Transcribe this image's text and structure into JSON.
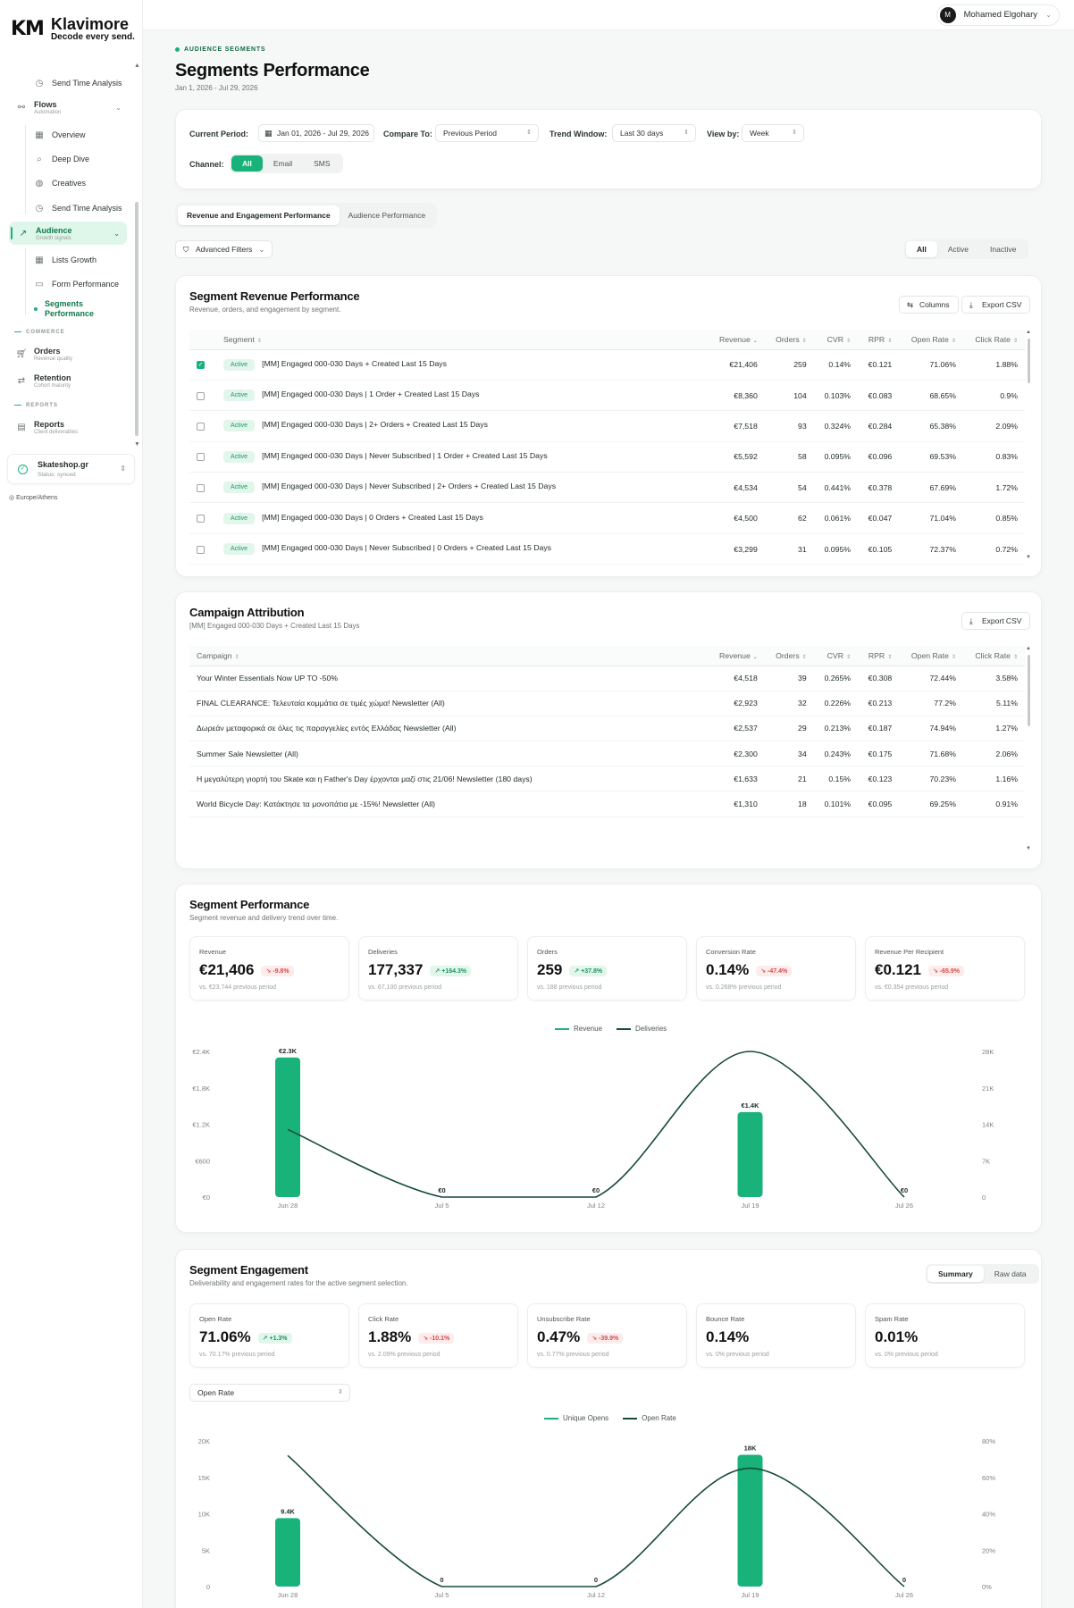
{
  "brand": {
    "mark": "KM",
    "name": "Klavimore",
    "tagline": "Decode every send."
  },
  "sidebar": {
    "items": [
      {
        "label": "Send Time Analysis"
      },
      {
        "label": "Flows",
        "sub": "Automation"
      },
      {
        "label": "Overview"
      },
      {
        "label": "Deep Dive"
      },
      {
        "label": "Creatives"
      },
      {
        "label": "Send Time Analysis"
      },
      {
        "label": "Audience",
        "sub": "Growth signals"
      },
      {
        "label": "Lists Growth"
      },
      {
        "label": "Form Performance"
      },
      {
        "label": "Segments Performance"
      },
      {
        "label": "Orders",
        "sub": "Revenue quality"
      },
      {
        "label": "Retention",
        "sub": "Cohort maturity"
      },
      {
        "label": "Reports",
        "sub": "Client deliverables"
      }
    ],
    "sections": {
      "commerce": "COMMERCE",
      "reports": "REPORTS"
    },
    "store": {
      "name": "Skateshop.gr",
      "status": "Status: synced"
    },
    "timezone": "Europe/Athens"
  },
  "user": {
    "name": "Mohamed Elgohary",
    "initial": "M"
  },
  "page": {
    "eyebrow": "AUDIENCE SEGMENTS",
    "title": "Segments Performance",
    "date_range": "Jan 1, 2026 - Jul 29, 2026"
  },
  "filters": {
    "current_period_label": "Current Period:",
    "current_period_value": "Jan 01, 2026 - Jul 29, 2026",
    "compare_label": "Compare To:",
    "compare_value": "Previous Period",
    "trend_label": "Trend Window:",
    "trend_value": "Last 30 days",
    "view_label": "View by:",
    "view_value": "Week",
    "channel_label": "Channel:",
    "channels": [
      "All",
      "Email",
      "SMS"
    ]
  },
  "tabs": [
    "Revenue and Engagement Performance",
    "Audience Performance"
  ],
  "advanced_filters": "Advanced Filters",
  "status_filter": [
    "All",
    "Active",
    "Inactive"
  ],
  "segment_table": {
    "title": "Segment Revenue Performance",
    "subtitle": "Revenue, orders, and engagement by segment.",
    "columns_btn": "Columns",
    "export_btn": "Export CSV",
    "headers": [
      "Segment",
      "Revenue",
      "Orders",
      "CVR",
      "RPR",
      "Open Rate",
      "Click Rate"
    ],
    "rows": [
      {
        "checked": true,
        "status": "Active",
        "name": "[MM] Engaged 000-030 Days + Created Last 15 Days",
        "revenue": "€21,406",
        "orders": "259",
        "cvr": "0.14%",
        "rpr": "€0.121",
        "open": "71.06%",
        "click": "1.88%"
      },
      {
        "checked": false,
        "status": "Active",
        "name": "[MM] Engaged 000-030 Days | 1 Order + Created Last 15 Days",
        "revenue": "€8,360",
        "orders": "104",
        "cvr": "0.103%",
        "rpr": "€0.083",
        "open": "68.65%",
        "click": "0.9%"
      },
      {
        "checked": false,
        "status": "Active",
        "name": "[MM] Engaged 000-030 Days | 2+ Orders + Created Last 15 Days",
        "revenue": "€7,518",
        "orders": "93",
        "cvr": "0.324%",
        "rpr": "€0.284",
        "open": "65.38%",
        "click": "2.09%"
      },
      {
        "checked": false,
        "status": "Active",
        "name": "[MM] Engaged 000-030 Days | Never Subscribed | 1 Order + Created Last 15 Days",
        "revenue": "€5,592",
        "orders": "58",
        "cvr": "0.095%",
        "rpr": "€0.096",
        "open": "69.53%",
        "click": "0.83%"
      },
      {
        "checked": false,
        "status": "Active",
        "name": "[MM] Engaged 000-030 Days | Never Subscribed | 2+ Orders + Created Last 15 Days",
        "revenue": "€4,534",
        "orders": "54",
        "cvr": "0.441%",
        "rpr": "€0.378",
        "open": "67.69%",
        "click": "1.72%"
      },
      {
        "checked": false,
        "status": "Active",
        "name": "[MM] Engaged 000-030 Days | 0 Orders + Created Last 15 Days",
        "revenue": "€4,500",
        "orders": "62",
        "cvr": "0.061%",
        "rpr": "€0.047",
        "open": "71.04%",
        "click": "0.85%"
      },
      {
        "checked": false,
        "status": "Active",
        "name": "[MM] Engaged 000-030 Days | Never Subscribed | 0 Orders + Created Last 15 Days",
        "revenue": "€3,299",
        "orders": "31",
        "cvr": "0.095%",
        "rpr": "€0.105",
        "open": "72.37%",
        "click": "0.72%"
      }
    ]
  },
  "campaign_table": {
    "title": "Campaign Attribution",
    "subtitle": "[MM] Engaged 000-030 Days + Created Last 15 Days",
    "export_btn": "Export CSV",
    "headers": [
      "Campaign",
      "Revenue",
      "Orders",
      "CVR",
      "RPR",
      "Open Rate",
      "Click Rate"
    ],
    "rows": [
      {
        "name": "Your Winter Essentials Now UP TO -50%",
        "revenue": "€4,518",
        "orders": "39",
        "cvr": "0.265%",
        "rpr": "€0.308",
        "open": "72.44%",
        "click": "3.58%"
      },
      {
        "name": "FINAL CLEARANCE: Τελευταία κομμάτια σε τιμές χώμα! Newsletter (All)",
        "revenue": "€2,923",
        "orders": "32",
        "cvr": "0.226%",
        "rpr": "€0.213",
        "open": "77.2%",
        "click": "5.11%"
      },
      {
        "name": "Δωρεάν μεταφορικά σε όλες τις παραγγελίες εντός Ελλάδας Newsletter (All)",
        "revenue": "€2,537",
        "orders": "29",
        "cvr": "0.213%",
        "rpr": "€0.187",
        "open": "74.94%",
        "click": "1.27%"
      },
      {
        "name": "Summer Sale Newsletter (All)",
        "revenue": "€2,300",
        "orders": "34",
        "cvr": "0.243%",
        "rpr": "€0.175",
        "open": "71.68%",
        "click": "2.06%"
      },
      {
        "name": "Η μεγαλύτερη γιορτή του Skate και η Father's Day έρχονται μαζί στις 21/06! Newsletter (180 days)",
        "revenue": "€1,633",
        "orders": "21",
        "cvr": "0.15%",
        "rpr": "€0.123",
        "open": "70.23%",
        "click": "1.16%"
      },
      {
        "name": "World Bicycle Day: Κατάκτησε τα μονοπάτια με -15%! Newsletter (All)",
        "revenue": "€1,310",
        "orders": "18",
        "cvr": "0.101%",
        "rpr": "€0.095",
        "open": "69.25%",
        "click": "0.91%"
      }
    ]
  },
  "segment_perf": {
    "title": "Segment Performance",
    "subtitle": "Segment revenue and delivery trend over time.",
    "kpis": [
      {
        "label": "Revenue",
        "value": "€21,406",
        "delta": "-9.8%",
        "dir": "dn",
        "prev": "vs. €23,744 previous period"
      },
      {
        "label": "Deliveries",
        "value": "177,337",
        "delta": "+164.3%",
        "dir": "up",
        "prev": "vs. 67,100 previous period"
      },
      {
        "label": "Orders",
        "value": "259",
        "delta": "+37.8%",
        "dir": "up",
        "prev": "vs. 188 previous period"
      },
      {
        "label": "Conversion Rate",
        "value": "0.14%",
        "delta": "-47.4%",
        "dir": "dn",
        "prev": "vs. 0.268% previous period"
      },
      {
        "label": "Revenue Per Recipient",
        "value": "€0.121",
        "delta": "-65.9%",
        "dir": "dn",
        "prev": "vs. €0.354 previous period"
      }
    ]
  },
  "segment_engagement": {
    "title": "Segment Engagement",
    "subtitle": "Deliverability and engagement rates for the active segment selection.",
    "view_toggle": [
      "Summary",
      "Raw data"
    ],
    "metric_select": "Open Rate",
    "kpis": [
      {
        "label": "Open Rate",
        "value": "71.06%",
        "delta": "+1.3%",
        "dir": "up",
        "prev": "vs. 70.17% previous period"
      },
      {
        "label": "Click Rate",
        "value": "1.88%",
        "delta": "-10.1%",
        "dir": "dn",
        "prev": "vs. 2.09% previous period"
      },
      {
        "label": "Unsubscribe Rate",
        "value": "0.47%",
        "delta": "-39.9%",
        "dir": "dn",
        "prev": "vs. 0.77% previous period"
      },
      {
        "label": "Bounce Rate",
        "value": "0.14%",
        "delta": "",
        "dir": "",
        "prev": "vs. 0% previous period"
      },
      {
        "label": "Spam Rate",
        "value": "0.01%",
        "delta": "",
        "dir": "",
        "prev": "vs. 0% previous period"
      }
    ]
  },
  "chart_data": [
    {
      "type": "bar",
      "categories": [
        "Jun 28",
        "Jul 5",
        "Jul 12",
        "Jul 19",
        "Jul 26"
      ],
      "series": [
        {
          "name": "Revenue",
          "values": [
            2300,
            0,
            0,
            1400,
            0
          ],
          "labels": [
            "€2.3K",
            "€0",
            "€0",
            "€1.4K",
            "€0"
          ],
          "axis": "left",
          "kind": "bar"
        },
        {
          "name": "Deliveries",
          "values": [
            13000,
            0,
            0,
            28000,
            0
          ],
          "axis": "right",
          "kind": "line"
        }
      ],
      "y_left": {
        "ticks": [
          "€0",
          "€600",
          "€1.2K",
          "€1.8K",
          "€2.4K"
        ],
        "max": 2400
      },
      "y_right": {
        "ticks": [
          "0",
          "7K",
          "14K",
          "21K",
          "28K"
        ],
        "max": 28000
      },
      "colors": {
        "bar": "#19b27a",
        "line": "#174b36"
      },
      "legend": "top-center"
    },
    {
      "type": "bar",
      "categories": [
        "Jun 28",
        "Jul 5",
        "Jul 12",
        "Jul 19",
        "Jul 26"
      ],
      "series": [
        {
          "name": "Unique Opens",
          "values": [
            9400,
            0,
            0,
            18100,
            0
          ],
          "labels": [
            "9.4K",
            "0",
            "0",
            "18K",
            "0"
          ],
          "axis": "left",
          "kind": "bar"
        },
        {
          "name": "Open Rate",
          "values": [
            72,
            0,
            0,
            65,
            0
          ],
          "axis": "right",
          "kind": "line"
        }
      ],
      "y_left": {
        "ticks": [
          "0",
          "5K",
          "10K",
          "15K",
          "20K"
        ],
        "max": 20000
      },
      "y_right": {
        "ticks": [
          "0%",
          "20%",
          "40%",
          "60%",
          "80%"
        ],
        "max": 80
      },
      "colors": {
        "bar": "#19b27a",
        "line": "#174b36"
      },
      "legend": "top-center"
    }
  ]
}
